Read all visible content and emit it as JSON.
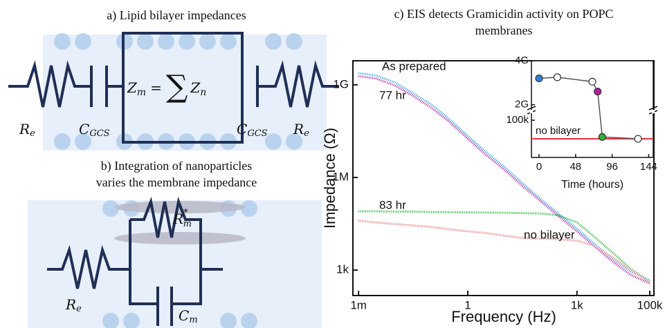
{
  "panel_a": {
    "title": "a) Lipid bilayer impedances",
    "equation": {
      "lhs": "Z",
      "lhs_sub": "m",
      "equals": "=",
      "sum": "∑",
      "rhs": "Z",
      "rhs_sub": "n"
    },
    "labels": [
      {
        "symbol": "R",
        "sub": "e"
      },
      {
        "symbol": "C",
        "sub": "GCS"
      },
      {
        "symbol": "C",
        "sub": "GCS"
      },
      {
        "symbol": "R",
        "sub": "e"
      }
    ]
  },
  "panel_b": {
    "title_lines": [
      "b) Integration of nanoparticles",
      "varies the membrane impedance"
    ],
    "labels": [
      {
        "symbol": "R",
        "sub": "e"
      },
      {
        "symbol": "R",
        "sub": "m",
        "sup": "*"
      },
      {
        "symbol": "C",
        "sub": "m"
      }
    ]
  },
  "chart_data": [
    {
      "type": "line",
      "title_lines": [
        "c) EIS detects Gramicidin activity on POPC",
        "membranes"
      ],
      "x_label": "Frequency (Hz)",
      "y_label": "Impedance (Ω)",
      "log_x": true,
      "log_y": true,
      "xlim": [
        0.0007,
        130000
      ],
      "ylim": [
        150,
        6000000000
      ],
      "xticks": [
        {
          "value": 0.001,
          "label": "1m"
        },
        1,
        {
          "value": 1000,
          "label": "1k"
        },
        {
          "value": 100000,
          "label": "100k"
        }
      ],
      "yticks": [
        {
          "value": 1000,
          "label": "1k"
        },
        {
          "value": 1000000,
          "label": "1M"
        },
        {
          "value": 1000000000,
          "label": "1G"
        }
      ],
      "x": [
        0.001,
        0.003,
        0.01,
        0.03,
        0.1,
        0.3,
        1,
        3,
        10,
        30,
        100,
        300,
        1000,
        3000,
        10000,
        30000,
        100000
      ],
      "series": [
        {
          "name": "As prepared",
          "color": "#2a9de0",
          "values": [
            2400000000,
            2000000000,
            1200000000,
            550000000,
            230000000,
            80000000,
            22000000,
            7000000,
            2200000,
            700000,
            200000,
            70000,
            22000,
            7000,
            2200,
            900,
            470
          ]
        },
        {
          "name": "77 hr",
          "color": "#b0209e",
          "values": [
            1900000000,
            1600000000,
            950000000,
            450000000,
            180000000,
            65000000,
            18000000,
            5600000,
            1800000,
            560000,
            170000,
            58000,
            18000,
            5800,
            1800,
            700,
            370
          ]
        },
        {
          "name": "83 hr",
          "color": "#2bb03a",
          "values": [
            80000,
            80000,
            78000,
            78000,
            76000,
            75000,
            74000,
            73000,
            72000,
            70000,
            68000,
            60000,
            35000,
            12000,
            3500,
            1100,
            420
          ]
        },
        {
          "name": "no bilayer",
          "color": "#e87a7a",
          "values": [
            40000,
            35000,
            31000,
            28000,
            25000,
            21000,
            18000,
            16000,
            13000,
            11000,
            10500,
            10000,
            9000,
            6000,
            2500,
            1000,
            400
          ]
        }
      ]
    },
    {
      "type": "scatter",
      "x_label": "Time (hours)",
      "xlim": [
        -10,
        150
      ],
      "xticks": [
        0,
        48,
        96,
        144
      ],
      "ylim_upper": [
        1800000000,
        4000000000
      ],
      "ylim_lower": [
        0,
        115000
      ],
      "yticks": [
        {
          "value": 4000000000,
          "label": "4G"
        },
        {
          "value": 2000000000,
          "label": "2G"
        },
        {
          "value": 100000,
          "label": "100k"
        }
      ],
      "x": [
        0,
        24,
        70,
        77,
        83,
        130
      ],
      "values": [
        3200000000,
        3250000000,
        3050000000,
        2600000000,
        55000,
        50000
      ],
      "colors": [
        "#2f7fd8",
        "#ffffff",
        "#ffffff",
        "#b0209e",
        "#2bb03a",
        "#ffffff"
      ],
      "line_color": "#555555",
      "reference_lines": [
        {
          "label": "no bilayer",
          "value": 50000,
          "color": "#e8303a"
        }
      ]
    }
  ]
}
